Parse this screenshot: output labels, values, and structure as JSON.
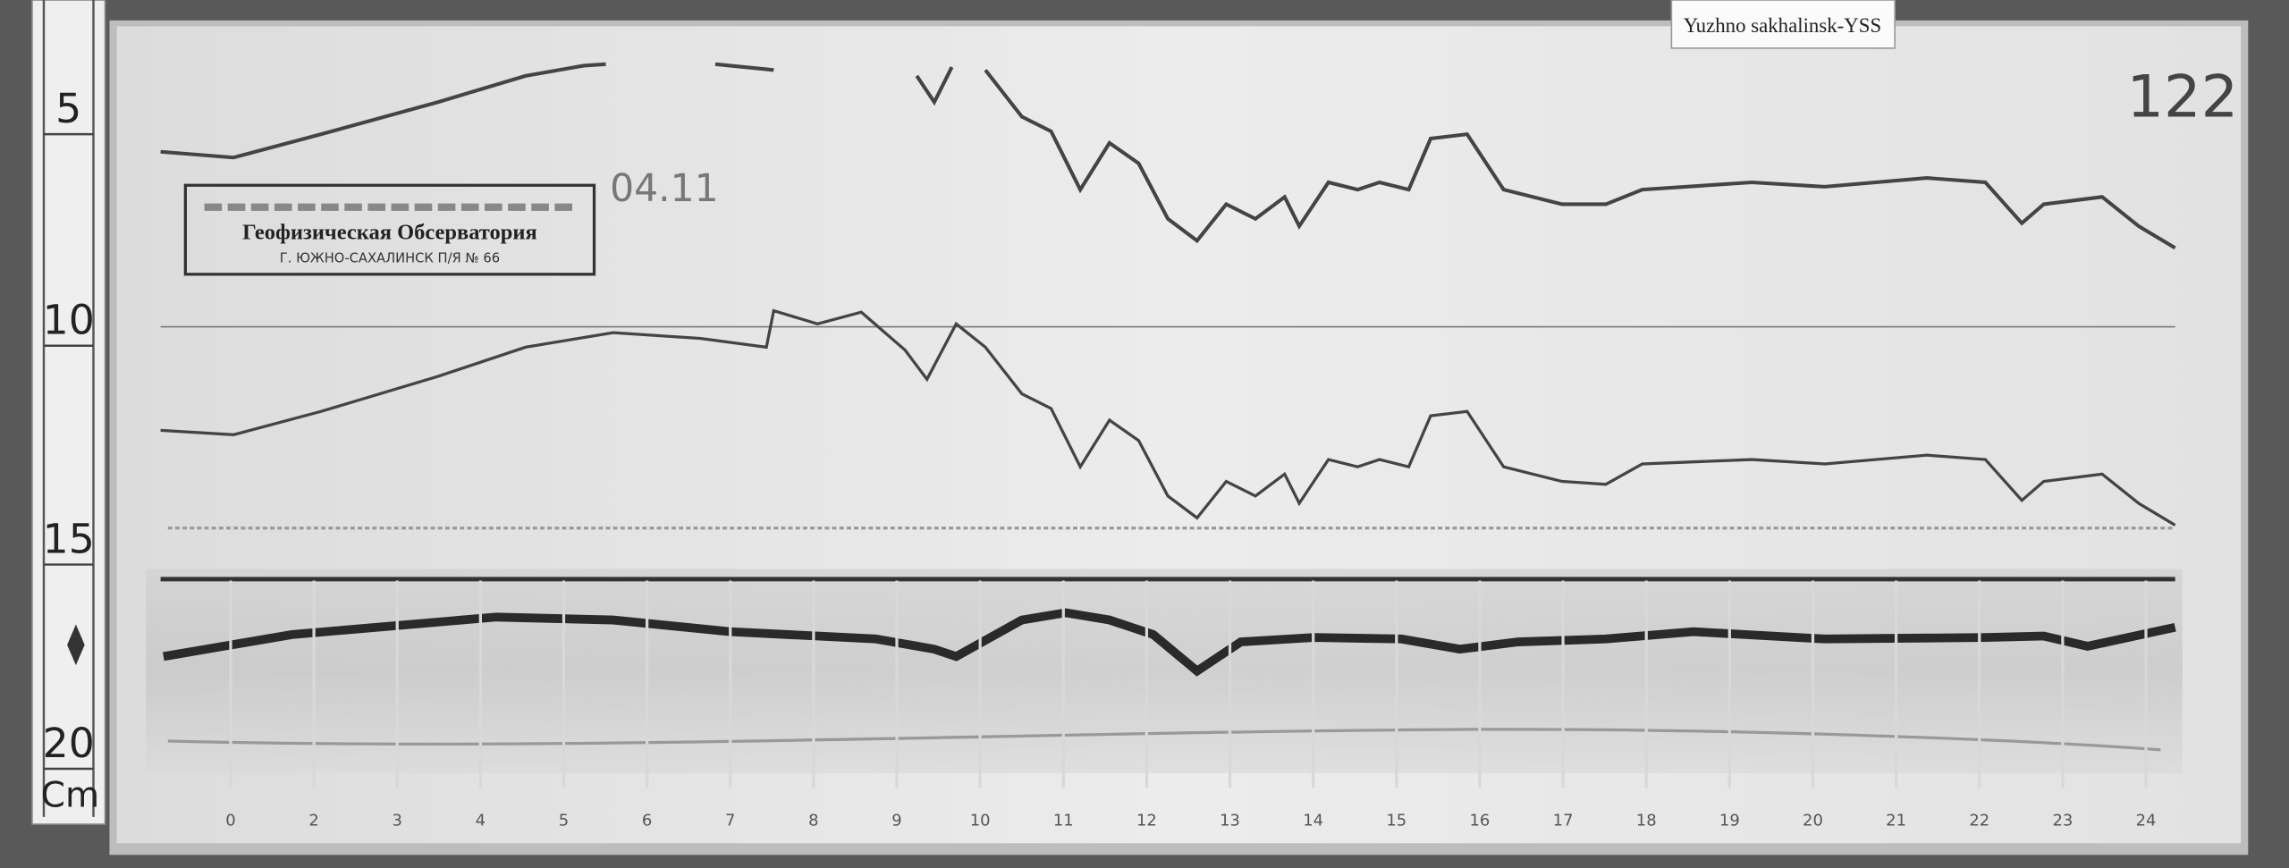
{
  "label_tag": "Yuzhno sakhalinsk-YSS",
  "sheet_number": "122",
  "date": "04.11",
  "stamp": {
    "title": "Геофизическая Обсерватория",
    "address": "Г. ЮЖНО-САХАЛИНСК П/Я № 66"
  },
  "ruler": {
    "marks": [
      "5",
      "10",
      "15",
      "20"
    ],
    "unit": "Cm"
  },
  "hour_labels": [
    "0",
    "2",
    "3",
    "4",
    "5",
    "6",
    "7",
    "8",
    "9",
    "10",
    "11",
    "12",
    "13",
    "14",
    "15",
    "16",
    "17",
    "18",
    "19",
    "20",
    "21",
    "22",
    "23",
    "24"
  ]
}
